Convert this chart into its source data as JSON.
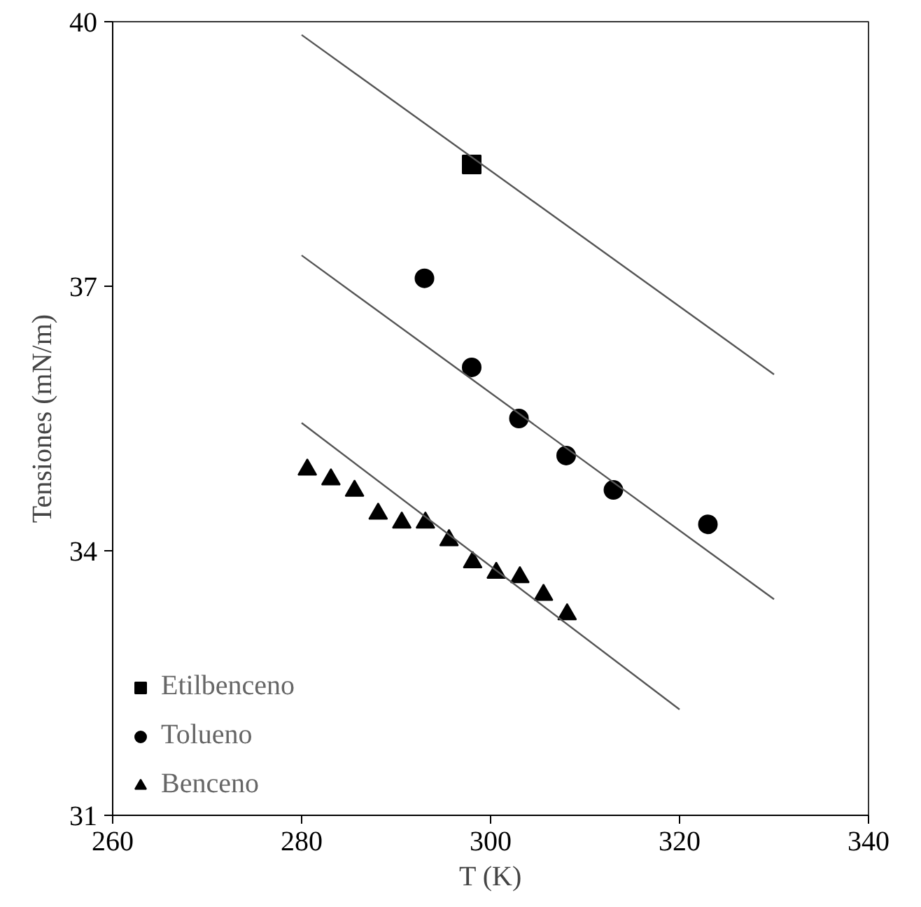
{
  "chart_data": {
    "type": "scatter",
    "xlabel": "T (K)",
    "ylabel": "Tensiones (mN/m)",
    "xlim": [
      260,
      340
    ],
    "xticks": [
      260,
      280,
      300,
      320,
      340
    ],
    "ylim": [
      31,
      40
    ],
    "yticks": [
      31,
      34,
      37,
      40
    ],
    "grid": false,
    "legend": "bottom left",
    "series": [
      {
        "name": "Etilbenceno",
        "color": "#000000",
        "marker": "square",
        "x": [
          298
        ],
        "values": [
          38.38
        ]
      },
      {
        "name": "Tolueno",
        "color": "#000000",
        "marker": "circle",
        "x": [
          293,
          298,
          303,
          308,
          313,
          323
        ],
        "values": [
          37.09,
          36.08,
          35.5,
          35.08,
          34.69,
          34.3
        ]
      },
      {
        "name": "Benceno",
        "color": "#000000",
        "marker": "triangle",
        "x": [
          280.6,
          283.1,
          285.6,
          288.1,
          290.6,
          293.1,
          295.6,
          298.1,
          300.6,
          303.1,
          305.6,
          308.1
        ],
        "values": [
          34.92,
          34.81,
          34.68,
          34.42,
          34.32,
          34.32,
          34.12,
          33.87,
          33.75,
          33.7,
          33.5,
          33.28
        ]
      },
      {
        "type": "line",
        "color": "#555555",
        "line_style": "solid",
        "x": [
          280,
          330
        ],
        "values": [
          39.85,
          36.0
        ]
      },
      {
        "type": "line",
        "color": "#555555",
        "line_style": "solid",
        "x": [
          280,
          330
        ],
        "values": [
          37.35,
          33.45
        ]
      },
      {
        "type": "line",
        "color": "#555555",
        "line_style": "solid",
        "x": [
          280,
          320
        ],
        "values": [
          35.45,
          32.2
        ]
      }
    ]
  }
}
